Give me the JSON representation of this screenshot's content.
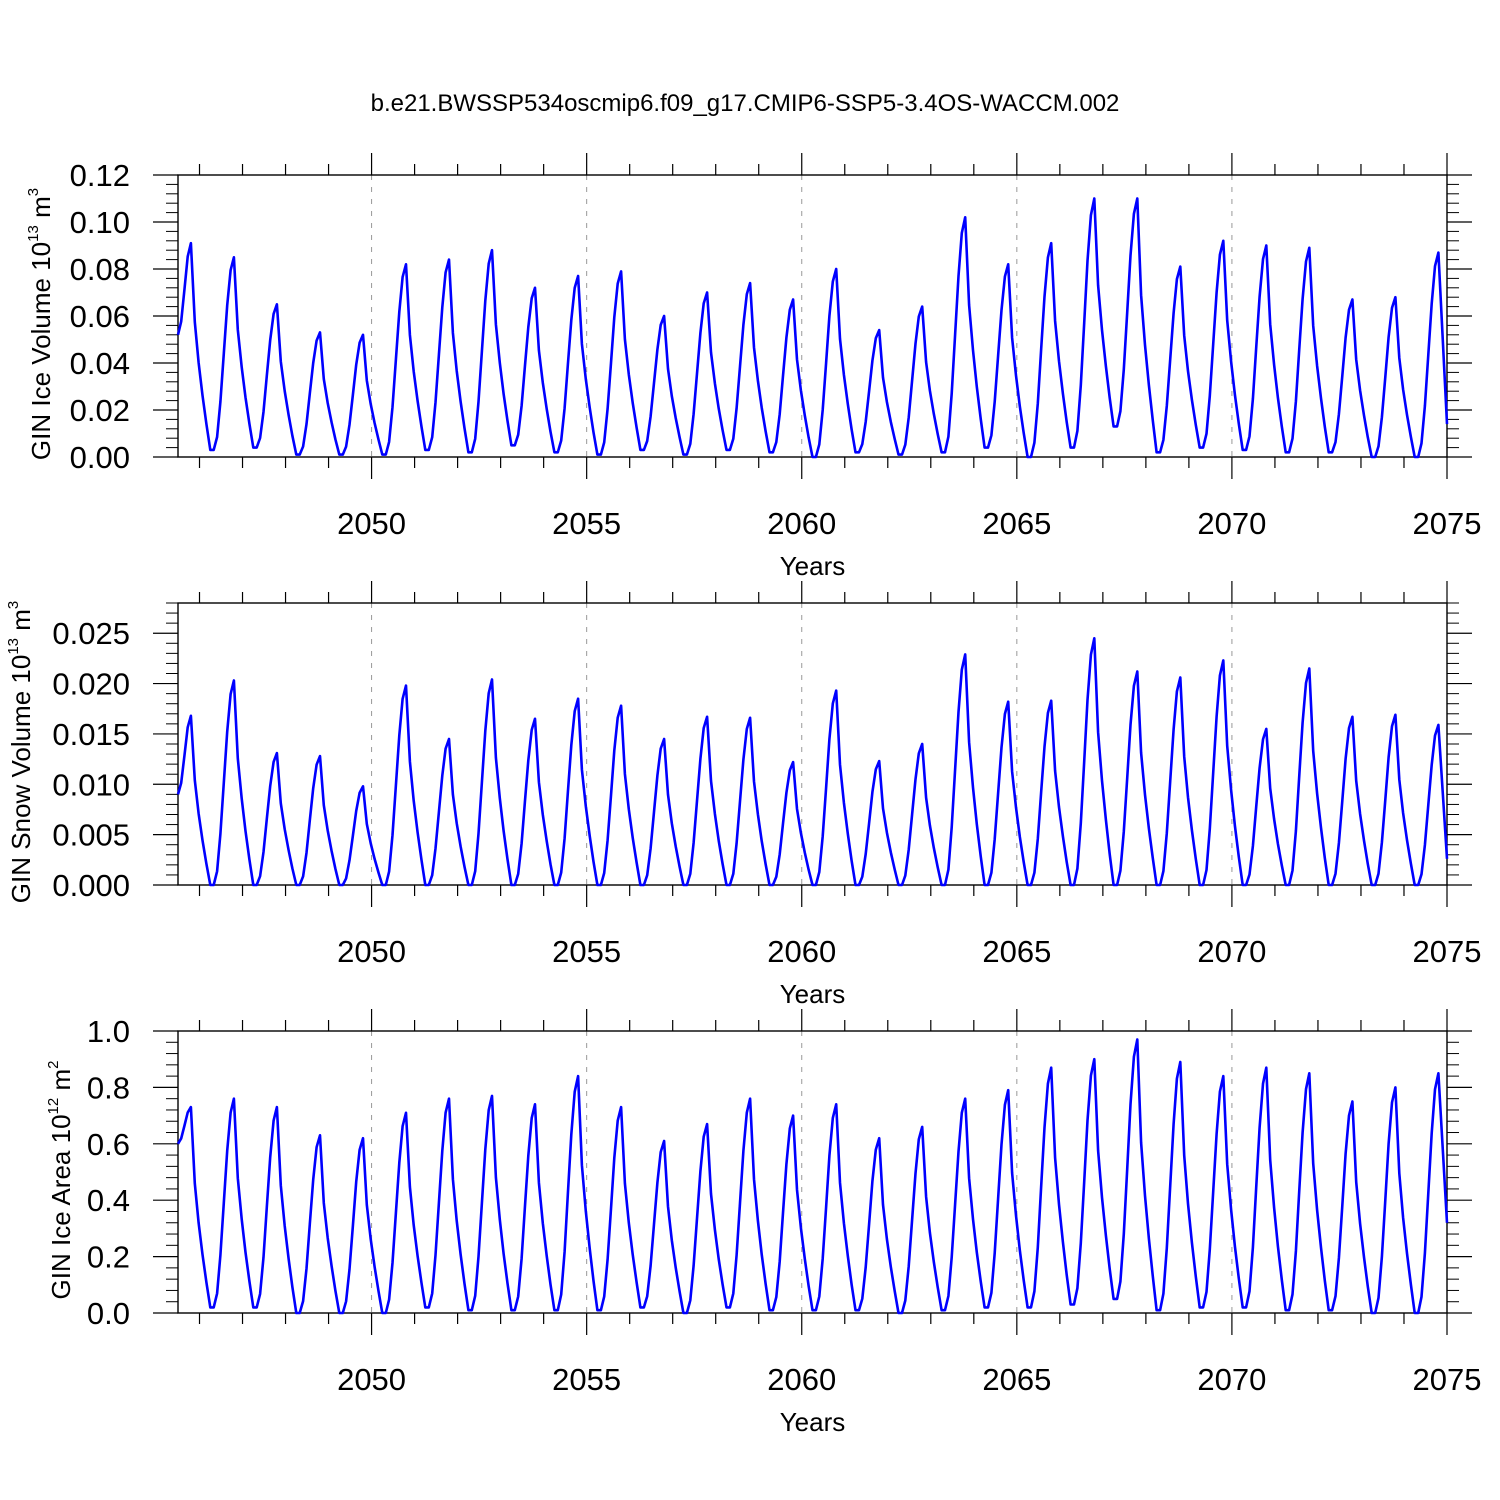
{
  "title": "b.e21.BWSSP534oscmip6.f09_g17.CMIP6-SSP5-3.4OS-WACCM.002",
  "colors": {
    "series": "#0000ff",
    "axis": "#000000",
    "gridline": "#999999"
  },
  "chart_data": [
    {
      "type": "line",
      "ylabel": {
        "text": "GIN Ice Volume 10",
        "sup": "13",
        "unit": " m",
        "unit_sup": "3"
      },
      "xlabel": "Years",
      "xlim": [
        2045.5,
        2075.0
      ],
      "ylim": [
        0.0,
        0.12
      ],
      "x_ticks": [
        "2050",
        "2055",
        "2060",
        "2065",
        "2070",
        "2075"
      ],
      "y_ticks": [
        "0.00",
        "0.02",
        "0.04",
        "0.06",
        "0.08",
        "0.10",
        "0.12"
      ],
      "grid": "dashed vertical lines every 5 years",
      "series": [
        {
          "peak_years": [
            2045.8,
            2046.8,
            2047.8,
            2048.8,
            2049.8,
            2050.8,
            2051.8,
            2052.8,
            2053.8,
            2054.8,
            2055.8,
            2056.8,
            2057.8,
            2058.8,
            2059.8,
            2060.8,
            2061.8,
            2062.8,
            2063.8,
            2064.8,
            2065.8,
            2066.8,
            2067.8,
            2068.8,
            2069.8,
            2070.8,
            2071.8,
            2072.8,
            2073.8,
            2074.8
          ],
          "peaks": [
            0.091,
            0.085,
            0.065,
            0.053,
            0.052,
            0.082,
            0.084,
            0.088,
            0.072,
            0.077,
            0.079,
            0.06,
            0.07,
            0.074,
            0.067,
            0.08,
            0.054,
            0.064,
            0.102,
            0.082,
            0.091,
            0.11,
            0.11,
            0.081,
            0.092,
            0.09,
            0.089,
            0.067,
            0.068,
            0.087
          ],
          "minima": [
            0.003,
            0.004,
            0.001,
            0.001,
            0.001,
            0.003,
            0.002,
            0.005,
            0.002,
            0.001,
            0.003,
            0.001,
            0.003,
            0.002,
            0.0,
            0.002,
            0.001,
            0.002,
            0.004,
            0.0,
            0.004,
            0.013,
            0.002,
            0.004,
            0.003,
            0.002,
            0.002,
            0.0,
            0.0,
            0.001
          ],
          "start": 0.052,
          "end": 0.014
        }
      ]
    },
    {
      "type": "line",
      "ylabel": {
        "text": "GIN Snow Volume 10",
        "sup": "13",
        "unit": " m",
        "unit_sup": "3"
      },
      "xlabel": "Years",
      "xlim": [
        2045.5,
        2075.0
      ],
      "ylim": [
        0.0,
        0.028
      ],
      "x_ticks": [
        "2050",
        "2055",
        "2060",
        "2065",
        "2070",
        "2075"
      ],
      "y_ticks": [
        "0.000",
        "0.005",
        "0.010",
        "0.015",
        "0.020",
        "0.025"
      ],
      "grid": "dashed vertical lines every 5 years",
      "series": [
        {
          "peak_years": [
            2045.8,
            2046.8,
            2047.8,
            2048.8,
            2049.8,
            2050.8,
            2051.8,
            2052.8,
            2053.8,
            2054.8,
            2055.8,
            2056.8,
            2057.8,
            2058.8,
            2059.8,
            2060.8,
            2061.8,
            2062.8,
            2063.8,
            2064.8,
            2065.8,
            2066.8,
            2067.8,
            2068.8,
            2069.8,
            2070.8,
            2071.8,
            2072.8,
            2073.8,
            2074.8
          ],
          "peaks": [
            0.0168,
            0.0203,
            0.0131,
            0.0128,
            0.0098,
            0.0198,
            0.0145,
            0.0204,
            0.0165,
            0.0185,
            0.0178,
            0.0145,
            0.0167,
            0.0166,
            0.0122,
            0.0193,
            0.0123,
            0.014,
            0.0229,
            0.0182,
            0.0183,
            0.0245,
            0.0212,
            0.0206,
            0.0223,
            0.0155,
            0.0215,
            0.0167,
            0.0169,
            0.0159
          ],
          "minima": [
            0.0,
            0.0,
            0.0,
            0.0,
            0.0,
            0.0,
            0.0,
            0.0,
            0.0,
            0.0,
            0.0,
            0.0,
            0.0,
            0.0,
            0.0,
            0.0,
            0.0,
            0.0,
            0.0,
            0.0,
            0.0,
            0.0,
            0.0,
            0.0,
            0.0,
            0.0,
            0.0,
            0.0,
            0.0,
            0.0
          ],
          "start": 0.009,
          "end": 0.0026
        }
      ]
    },
    {
      "type": "line",
      "ylabel": {
        "text": "GIN Ice Area 10",
        "sup": "12",
        "unit": " m",
        "unit_sup": "2"
      },
      "xlabel": "Years",
      "xlim": [
        2045.5,
        2075.0
      ],
      "ylim": [
        0.0,
        1.0
      ],
      "x_ticks": [
        "2050",
        "2055",
        "2060",
        "2065",
        "2070",
        "2075"
      ],
      "y_ticks": [
        "0.0",
        "0.2",
        "0.4",
        "0.6",
        "0.8",
        "1.0"
      ],
      "grid": "dashed vertical lines every 5 years",
      "series": [
        {
          "peak_years": [
            2045.8,
            2046.8,
            2047.8,
            2048.8,
            2049.8,
            2050.8,
            2051.8,
            2052.8,
            2053.8,
            2054.8,
            2055.8,
            2056.8,
            2057.8,
            2058.8,
            2059.8,
            2060.8,
            2061.8,
            2062.8,
            2063.8,
            2064.8,
            2065.8,
            2066.8,
            2067.8,
            2068.8,
            2069.8,
            2070.8,
            2071.8,
            2072.8,
            2073.8,
            2074.8
          ],
          "peaks": [
            0.73,
            0.76,
            0.73,
            0.63,
            0.62,
            0.71,
            0.76,
            0.77,
            0.74,
            0.84,
            0.73,
            0.61,
            0.67,
            0.76,
            0.7,
            0.74,
            0.62,
            0.66,
            0.76,
            0.79,
            0.87,
            0.9,
            0.97,
            0.89,
            0.84,
            0.87,
            0.85,
            0.75,
            0.8,
            0.85
          ],
          "minima": [
            0.02,
            0.02,
            0.0,
            0.0,
            0.0,
            0.02,
            0.01,
            0.01,
            0.01,
            0.01,
            0.02,
            0.0,
            0.02,
            0.01,
            0.01,
            0.01,
            0.0,
            0.01,
            0.02,
            0.02,
            0.03,
            0.05,
            0.01,
            0.02,
            0.02,
            0.01,
            0.01,
            0.0,
            0.0,
            0.01
          ],
          "start": 0.6,
          "end": 0.32
        }
      ]
    }
  ]
}
